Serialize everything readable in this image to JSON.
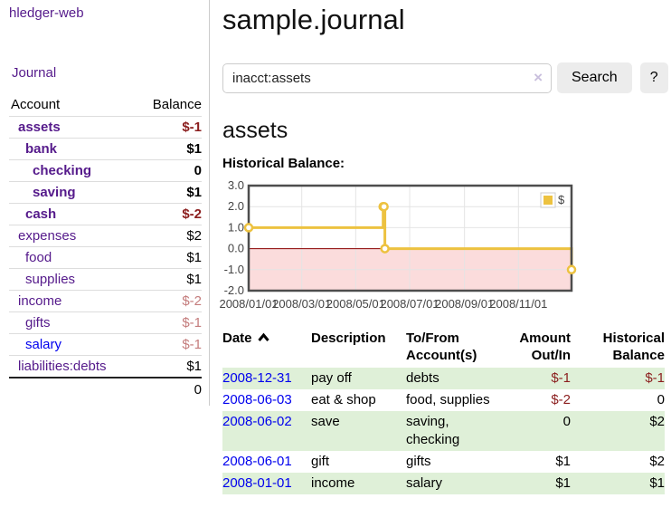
{
  "sidebar": {
    "app_title": "hledger-web",
    "journal_link": "Journal",
    "accounts_table": {
      "headers": [
        "Account",
        "Balance"
      ],
      "rows": [
        {
          "account": "assets",
          "balance": "$-1",
          "depth": 1,
          "in_selected_tree": true,
          "balance_style": "negative-strong"
        },
        {
          "account": "bank",
          "balance": "$1",
          "depth": 2,
          "in_selected_tree": true,
          "balance_style": "normal"
        },
        {
          "account": "checking",
          "balance": "0",
          "depth": 3,
          "in_selected_tree": true,
          "balance_style": "normal"
        },
        {
          "account": "saving",
          "balance": "$1",
          "depth": 3,
          "in_selected_tree": true,
          "balance_style": "normal"
        },
        {
          "account": "cash",
          "balance": "$-2",
          "depth": 2,
          "in_selected_tree": true,
          "balance_style": "negative-strong"
        },
        {
          "account": "expenses",
          "balance": "$2",
          "depth": 1,
          "in_selected_tree": false,
          "balance_style": "normal"
        },
        {
          "account": "food",
          "balance": "$1",
          "depth": 2,
          "in_selected_tree": false,
          "balance_style": "normal"
        },
        {
          "account": "supplies",
          "balance": "$1",
          "depth": 2,
          "in_selected_tree": false,
          "balance_style": "normal"
        },
        {
          "account": "income",
          "balance": "$-2",
          "depth": 1,
          "in_selected_tree": false,
          "balance_style": "negative-faded"
        },
        {
          "account": "gifts",
          "balance": "$-1",
          "depth": 2,
          "in_selected_tree": false,
          "balance_style": "negative-faded"
        },
        {
          "account": "salary",
          "balance": "$-1",
          "depth": 2,
          "in_selected_tree": false,
          "balance_style": "negative-faded",
          "link_state": "unvisited"
        },
        {
          "account": "liabilities:debts",
          "balance": "$1",
          "depth": 1,
          "in_selected_tree": false,
          "balance_style": "normal"
        }
      ],
      "total": "0"
    }
  },
  "main": {
    "title": "sample.journal",
    "search": {
      "value": "inacct:assets",
      "clear_icon": "×",
      "button_label": "Search",
      "help_button_label": "?"
    },
    "account_heading": "assets",
    "chart_label": "Historical Balance:"
  },
  "chart_data": {
    "type": "line",
    "title": "Historical Balance",
    "step": true,
    "x_range": [
      "2008-01-01",
      "2008-12-31"
    ],
    "ylim": [
      -2,
      3
    ],
    "y_ticks": [
      "3.0",
      "2.0",
      "1.0",
      "0.0",
      "-1.0",
      "-2.0"
    ],
    "x_ticks": [
      "2008/01/01",
      "2008/03/01",
      "2008/05/01",
      "2008/07/01",
      "2008/09/01",
      "2008/11/01"
    ],
    "grid": true,
    "legend": {
      "label": "$",
      "position": "top-right"
    },
    "series": [
      {
        "name": "$",
        "color": "#edc240",
        "points": [
          {
            "x": "2008-01-01",
            "y": 1
          },
          {
            "x": "2008-06-01",
            "y": 2
          },
          {
            "x": "2008-06-02",
            "y": 2
          },
          {
            "x": "2008-06-03",
            "y": 0
          },
          {
            "x": "2008-12-31",
            "y": -1
          }
        ]
      }
    ],
    "colors": {
      "negative_region": "#fbdcdc",
      "zero_line": "#8b0000",
      "gridline": "#e4e4e4",
      "border": "#4d4d4d",
      "marker_fill": "#ffffff",
      "tick_text": "#444444"
    }
  },
  "register_table": {
    "headers": [
      {
        "line1": "Date",
        "line2": "",
        "align": "left",
        "sort": "asc"
      },
      {
        "line1": "Description",
        "line2": "",
        "align": "left"
      },
      {
        "line1": "To/From",
        "line2": "Account(s)",
        "align": "left"
      },
      {
        "line1": "Amount",
        "line2": "Out/In",
        "align": "right"
      },
      {
        "line1": "Historical",
        "line2": "Balance",
        "align": "right"
      }
    ],
    "rows": [
      {
        "date": "2008-12-31",
        "description": "pay off",
        "accounts": "debts",
        "amount": "$-1",
        "amount_negative": true,
        "balance": "$-1",
        "balance_negative": true
      },
      {
        "date": "2008-06-03",
        "description": "eat & shop",
        "accounts": "food, supplies",
        "amount": "$-2",
        "amount_negative": true,
        "balance": "0",
        "balance_negative": false
      },
      {
        "date": "2008-06-02",
        "description": "save",
        "accounts": "saving, checking",
        "amount": "0",
        "amount_negative": false,
        "balance": "$2",
        "balance_negative": false
      },
      {
        "date": "2008-06-01",
        "description": "gift",
        "accounts": "gifts",
        "amount": "$1",
        "amount_negative": false,
        "balance": "$2",
        "balance_negative": false
      },
      {
        "date": "2008-01-01",
        "description": "income",
        "accounts": "salary",
        "amount": "$1",
        "amount_negative": false,
        "balance": "$1",
        "balance_negative": false
      }
    ]
  },
  "colors": {
    "link_unvisited": "#0000ee",
    "link_visited": "#551a8b",
    "negative_strong": "#8b1e1e",
    "negative_faded": "#c47c7c",
    "row_highlight_green": "#dff0d8",
    "chart_line": "#edc240"
  }
}
